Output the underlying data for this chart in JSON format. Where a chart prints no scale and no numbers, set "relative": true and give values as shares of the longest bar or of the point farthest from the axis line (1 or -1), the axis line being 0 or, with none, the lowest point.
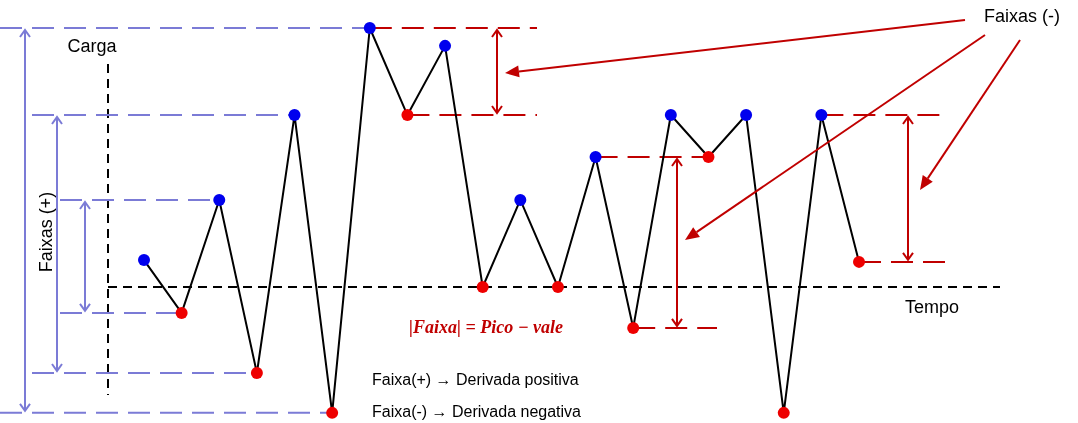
{
  "chart_data": {
    "type": "line",
    "relative": true,
    "xlabel": "Tempo",
    "ylabel": "Carga",
    "marker": "circle",
    "ref_lines": [
      {
        "axis": "y",
        "value": 0,
        "line_style": "dashed",
        "color": "#000000"
      }
    ],
    "categories": [
      null,
      null,
      null,
      null,
      null,
      null,
      null,
      null,
      null,
      null,
      null,
      null,
      null,
      null,
      null,
      null,
      null,
      null,
      null,
      null
    ],
    "series": [
      {
        "color": "#000000",
        "colors": [
          "#0000ee",
          "#ee0000",
          "#0000ee",
          "#ee0000",
          "#0000ee",
          "#ee0000",
          "#0000ee",
          "#ee0000",
          "#0000ee",
          "#ee0000",
          "#0000ee",
          "#ee0000",
          "#0000ee",
          "#ee0000",
          "#0000ee",
          "#ee0000",
          "#0000ee",
          "#ee0000",
          "#0000ee",
          "#ee0000"
        ],
        "values": [
          0.104,
          -0.1,
          0.336,
          -0.332,
          0.664,
          -0.486,
          1,
          0.664,
          0.931,
          0,
          0.336,
          0,
          0.502,
          -0.158,
          0.664,
          0.502,
          0.664,
          -0.486,
          0.664,
          0.097
        ]
      }
    ],
    "annotations": [
      "Faixas (+)",
      "Faixas (-)",
      "|Faixa| = Pico − vale",
      "Faixa(+) → Derivada positiva",
      "Faixa(-) → Derivada negativa"
    ]
  }
}
